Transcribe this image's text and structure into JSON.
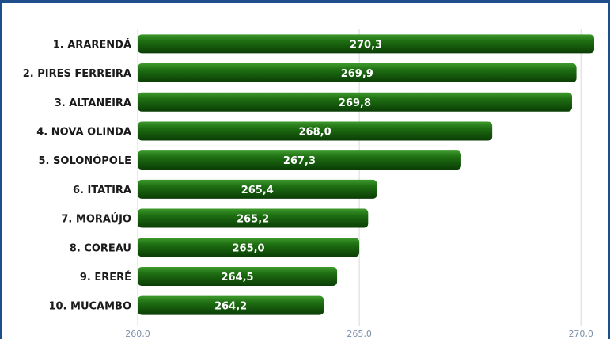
{
  "chart_data": {
    "type": "bar",
    "orientation": "horizontal",
    "categories": [
      "1. ARARENDÁ",
      "2. PIRES FERREIRA",
      "3. ALTANEIRA",
      "4. NOVA OLINDA",
      "5. SOLONÓPOLE",
      "6. ITATIRA",
      "7. MORAÚJO",
      "8. COREAÚ",
      "9. ERERÉ",
      "10. MUCAMBO"
    ],
    "values": [
      270.3,
      269.9,
      269.8,
      268.0,
      267.3,
      265.4,
      265.2,
      265.0,
      264.5,
      264.2
    ],
    "value_labels": [
      "270,3",
      "269,9",
      "269,8",
      "268,0",
      "267,3",
      "265,4",
      "265,2",
      "265,0",
      "264,5",
      "264,2"
    ],
    "x_ticks": [
      260,
      265,
      270
    ],
    "x_tick_labels": [
      "260,0",
      "265,0",
      "270,0"
    ],
    "xlim": [
      260,
      270.3
    ],
    "grid": true,
    "colors": {
      "bar": "#1e6e12",
      "bar_dark": "#0b3d06",
      "bar_light": "#3d9a2c",
      "label": "#1a1a1a",
      "value_text": "#ffffff",
      "tick": "#7a8fa8",
      "grid": "#d8d8d8",
      "frame": "#1f4e8c"
    }
  }
}
